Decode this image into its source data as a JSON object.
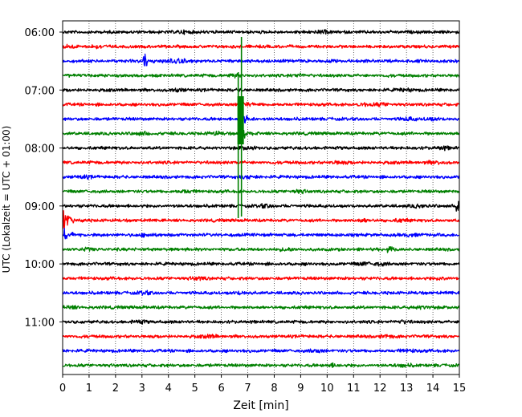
{
  "chart_data": {
    "type": "line",
    "title": "",
    "xlabel": "Zeit  [min]",
    "ylabel": "UTC (Lokalzeit = UTC + 01:00)",
    "xlim": [
      0,
      15
    ],
    "x_ticks": [
      "0",
      "1",
      "2",
      "3",
      "4",
      "5",
      "6",
      "7",
      "8",
      "9",
      "10",
      "11",
      "12",
      "13",
      "14",
      "15"
    ],
    "grid": "vertical dotted lines at each minute",
    "trace_interval_minutes": 15,
    "trace_start": "06:00",
    "trace_end": "11:45",
    "y_tick_labels": [
      "06:00",
      "07:00",
      "08:00",
      "09:00",
      "10:00",
      "11:00"
    ],
    "color_cycle": [
      "#000000",
      "#ff0000",
      "#0000ff",
      "#008000"
    ],
    "traces": [
      {
        "time": "06:00",
        "color": "#000000"
      },
      {
        "time": "06:15",
        "color": "#ff0000"
      },
      {
        "time": "06:30",
        "color": "#0000ff"
      },
      {
        "time": "06:45",
        "color": "#008000"
      },
      {
        "time": "07:00",
        "color": "#000000"
      },
      {
        "time": "07:15",
        "color": "#ff0000"
      },
      {
        "time": "07:30",
        "color": "#0000ff"
      },
      {
        "time": "07:45",
        "color": "#008000"
      },
      {
        "time": "08:00",
        "color": "#000000"
      },
      {
        "time": "08:15",
        "color": "#ff0000"
      },
      {
        "time": "08:30",
        "color": "#0000ff"
      },
      {
        "time": "08:45",
        "color": "#008000"
      },
      {
        "time": "09:00",
        "color": "#000000"
      },
      {
        "time": "09:15",
        "color": "#ff0000"
      },
      {
        "time": "09:30",
        "color": "#0000ff"
      },
      {
        "time": "09:45",
        "color": "#008000"
      },
      {
        "time": "10:00",
        "color": "#000000"
      },
      {
        "time": "10:15",
        "color": "#ff0000"
      },
      {
        "time": "10:30",
        "color": "#0000ff"
      },
      {
        "time": "10:45",
        "color": "#008000"
      },
      {
        "time": "11:00",
        "color": "#000000"
      },
      {
        "time": "11:15",
        "color": "#ff0000"
      },
      {
        "time": "11:30",
        "color": "#0000ff"
      },
      {
        "time": "11:45",
        "color": "#008000"
      }
    ],
    "events": [
      {
        "trace": "06:30",
        "x": 3.1,
        "amplitude": 0.5
      },
      {
        "trace": "07:15",
        "x": 6.7,
        "amplitude": 1.0
      },
      {
        "trace": "07:30",
        "x": 6.7,
        "amplitude": 1.0
      },
      {
        "trace": "07:45",
        "x": 6.7,
        "amplitude": 1.0
      },
      {
        "trace": "09:00",
        "x": 14.9,
        "amplitude": 0.6
      },
      {
        "trace": "09:15",
        "x": 0.05,
        "amplitude": 1.0
      },
      {
        "trace": "09:30",
        "x": 0.1,
        "amplitude": 0.5
      },
      {
        "trace": "09:45",
        "x": 12.3,
        "amplitude": 0.4
      }
    ]
  }
}
